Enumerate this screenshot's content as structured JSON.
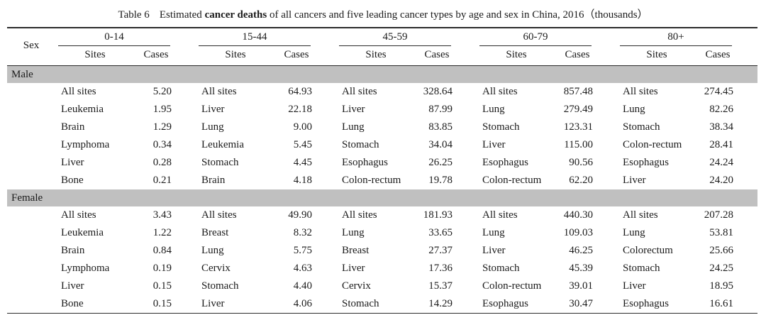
{
  "title": {
    "label": "Table 6",
    "pre": "Estimated ",
    "bold": "cancer deaths",
    "post": " of all cancers and five leading cancer types by age and sex in China, 2016（thousands）"
  },
  "header": {
    "sex_label": "Sex",
    "age_groups": [
      "0-14",
      "15-44",
      "45-59",
      "60-79",
      "80+"
    ],
    "sites_label": "Sites",
    "cases_label": "Cases"
  },
  "sections": [
    {
      "sex": "Male",
      "rows": [
        [
          [
            "All sites",
            "5.20"
          ],
          [
            "All sites",
            "64.93"
          ],
          [
            "All sites",
            "328.64"
          ],
          [
            "All sites",
            "857.48"
          ],
          [
            "All sites",
            "274.45"
          ]
        ],
        [
          [
            "Leukemia",
            "1.95"
          ],
          [
            "Liver",
            "22.18"
          ],
          [
            "Liver",
            "87.99"
          ],
          [
            "Lung",
            "279.49"
          ],
          [
            "Lung",
            "82.26"
          ]
        ],
        [
          [
            "Brain",
            "1.29"
          ],
          [
            "Lung",
            "9.00"
          ],
          [
            "Lung",
            "83.85"
          ],
          [
            "Stomach",
            "123.31"
          ],
          [
            "Stomach",
            "38.34"
          ]
        ],
        [
          [
            "Lymphoma",
            "0.34"
          ],
          [
            "Leukemia",
            "5.45"
          ],
          [
            "Stomach",
            "34.04"
          ],
          [
            "Liver",
            "115.00"
          ],
          [
            "Colon-rectum",
            "28.41"
          ]
        ],
        [
          [
            "Liver",
            "0.28"
          ],
          [
            "Stomach",
            "4.45"
          ],
          [
            "Esophagus",
            "26.25"
          ],
          [
            "Esophagus",
            "90.56"
          ],
          [
            "Esophagus",
            "24.24"
          ]
        ],
        [
          [
            "Bone",
            "0.21"
          ],
          [
            "Brain",
            "4.18"
          ],
          [
            "Colon-rectum",
            "19.78"
          ],
          [
            "Colon-rectum",
            "62.20"
          ],
          [
            "Liver",
            "24.20"
          ]
        ]
      ]
    },
    {
      "sex": "Female",
      "rows": [
        [
          [
            "All sites",
            "3.43"
          ],
          [
            "All sites",
            "49.90"
          ],
          [
            "All sites",
            "181.93"
          ],
          [
            "All sites",
            "440.30"
          ],
          [
            "All sites",
            "207.28"
          ]
        ],
        [
          [
            "Leukemia",
            "1.22"
          ],
          [
            "Breast",
            "8.32"
          ],
          [
            "Lung",
            "33.65"
          ],
          [
            "Lung",
            "109.03"
          ],
          [
            "Lung",
            "53.81"
          ]
        ],
        [
          [
            "Brain",
            "0.84"
          ],
          [
            "Lung",
            "5.75"
          ],
          [
            "Breast",
            "27.37"
          ],
          [
            "Liver",
            "46.25"
          ],
          [
            "Colorectum",
            "25.66"
          ]
        ],
        [
          [
            "Lymphoma",
            "0.19"
          ],
          [
            "Cervix",
            "4.63"
          ],
          [
            "Liver",
            "17.36"
          ],
          [
            "Stomach",
            "45.39"
          ],
          [
            "Stomach",
            "24.25"
          ]
        ],
        [
          [
            "Liver",
            "0.15"
          ],
          [
            "Stomach",
            "4.40"
          ],
          [
            "Cervix",
            "15.37"
          ],
          [
            "Colon-rectum",
            "39.01"
          ],
          [
            "Liver",
            "18.95"
          ]
        ],
        [
          [
            "Bone",
            "0.15"
          ],
          [
            "Liver",
            "4.06"
          ],
          [
            "Stomach",
            "14.29"
          ],
          [
            "Esophagus",
            "30.47"
          ],
          [
            "Esophagus",
            "16.61"
          ]
        ]
      ]
    }
  ],
  "colors": {
    "band_gray": "#c0c0c0",
    "rule_black": "#2b2b2b",
    "text": "#1b1b1b",
    "background": "#ffffff"
  }
}
